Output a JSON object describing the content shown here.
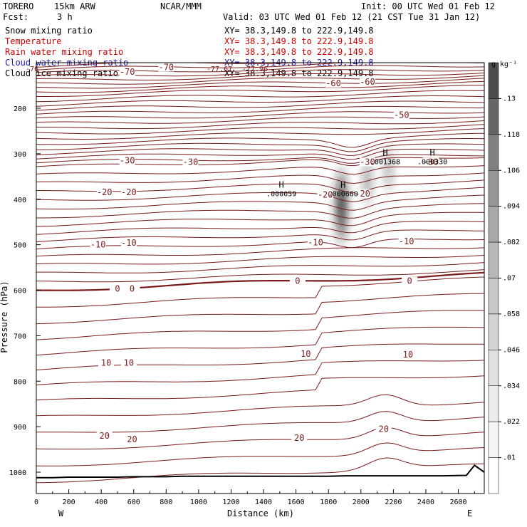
{
  "header": {
    "model": "TORERO",
    "resolution": "15km ARW",
    "center": "NCAR/MMM",
    "init": "Init: 00 UTC Wed 01 Feb 12",
    "fcst_label": "Fcst:",
    "fcst_value": "3 h",
    "valid": "Valid: 03 UTC Wed 01 Feb 12 (21 CST Tue 31 Jan 12)"
  },
  "fields": [
    {
      "name": "Snow mixing ratio",
      "xy": "XY=  38.3,149.8 to 222.9,149.8",
      "color": "#000000"
    },
    {
      "name": "Temperature",
      "xy": "XY=  38.3,149.8 to 222.9,149.8",
      "color": "#cc0000"
    },
    {
      "name": "Rain water mixing ratio",
      "xy": "XY=  38.3,149.8 to 222.9,149.8",
      "color": "#cc0000"
    },
    {
      "name": "Cloud water mixing ratio",
      "xy": "XY=  38.3,149.8 to 222.9,149.8",
      "color": "#1a1aaa"
    },
    {
      "name": "Cloud ice mixing ratio",
      "xy": "XY=  38.3,149.8 to 222.9,149.8",
      "color": "#000000"
    }
  ],
  "top_overlay_numbers": [
    "-77.67",
    "-77.96",
    "-76"
  ],
  "chart_data": {
    "type": "cross-section contour",
    "xlabel": "Distance (km)",
    "ylabel": "Pressure (hPa)",
    "xlim": [
      0,
      2760
    ],
    "ylim": [
      1050,
      100
    ],
    "x_ticks": [
      0,
      200,
      400,
      600,
      800,
      1000,
      1200,
      1400,
      1600,
      1800,
      2000,
      2200,
      2400,
      2600
    ],
    "y_ticks": [
      200,
      300,
      400,
      500,
      600,
      700,
      800,
      900,
      1000
    ],
    "west_label": "W",
    "east_label": "E",
    "isotherm_levels_degC": [
      -76,
      -74,
      -72,
      -70,
      -68,
      -66,
      -64,
      -62,
      -60,
      -58,
      -56,
      -54,
      -52,
      -50,
      -48,
      -46,
      -44,
      -42,
      -40,
      -38,
      -36,
      -34,
      -32,
      -30,
      -28,
      -26,
      -24,
      -22,
      -20,
      -18,
      -16,
      -14,
      -12,
      -10,
      -8,
      -6,
      -4,
      -2,
      0,
      2,
      4,
      6,
      8,
      10,
      12,
      14,
      16,
      18,
      20,
      22,
      24
    ],
    "contour_labels": [
      {
        "text": "-70",
        "x": 560,
        "p": 120
      },
      {
        "text": "-70",
        "x": 800,
        "p": 110
      },
      {
        "text": "-60",
        "x": 1830,
        "p": 145
      },
      {
        "text": "-60",
        "x": 2040,
        "p": 142
      },
      {
        "text": "-50",
        "x": 2250,
        "p": 215
      },
      {
        "text": "-30",
        "x": 560,
        "p": 315
      },
      {
        "text": "-30",
        "x": 950,
        "p": 318
      },
      {
        "text": "-30",
        "x": 2040,
        "p": 318
      },
      {
        "text": "-30",
        "x": 2430,
        "p": 318
      },
      {
        "text": "-20",
        "x": 420,
        "p": 385
      },
      {
        "text": "-20",
        "x": 570,
        "p": 385
      },
      {
        "text": "-20",
        "x": 1780,
        "p": 390
      },
      {
        "text": "-20",
        "x": 2010,
        "p": 388
      },
      {
        "text": "-10",
        "x": 380,
        "p": 500
      },
      {
        "text": "-10",
        "x": 570,
        "p": 496
      },
      {
        "text": "-10",
        "x": 1720,
        "p": 495
      },
      {
        "text": "-10",
        "x": 2280,
        "p": 493
      },
      {
        "text": "0",
        "x": 500,
        "p": 597
      },
      {
        "text": "0",
        "x": 590,
        "p": 597
      },
      {
        "text": "0",
        "x": 1610,
        "p": 580
      },
      {
        "text": "0",
        "x": 2300,
        "p": 580
      },
      {
        "text": "10",
        "x": 430,
        "p": 760
      },
      {
        "text": "10",
        "x": 570,
        "p": 760
      },
      {
        "text": "10",
        "x": 1660,
        "p": 740
      },
      {
        "text": "10",
        "x": 2290,
        "p": 742
      },
      {
        "text": "20",
        "x": 420,
        "p": 920
      },
      {
        "text": "20",
        "x": 590,
        "p": 928
      },
      {
        "text": "20",
        "x": 1620,
        "p": 925
      },
      {
        "text": "20",
        "x": 2140,
        "p": 905
      }
    ],
    "extrema": [
      {
        "letter": "H",
        "value": ".000059",
        "x": 1510,
        "p": 390
      },
      {
        "letter": "H",
        "value": ".000660",
        "x": 1890,
        "p": 390
      },
      {
        "letter": "H",
        "value": ".001368",
        "x": 2150,
        "p": 320
      },
      {
        "letter": "H",
        "value": ".000330",
        "x": 2440,
        "p": 320
      }
    ],
    "shading_blobs_snow_gkg": [
      {
        "x": 1880,
        "p": 415,
        "max": 0.14
      },
      {
        "x": 2040,
        "p": 360,
        "max": 0.05
      },
      {
        "x": 2170,
        "p": 335,
        "max": 0.04
      }
    ],
    "colorbar": {
      "unit": "g kg⁻¹",
      "ticks": [
        ".01",
        ".022",
        ".034",
        ".046",
        ".058",
        ".07",
        ".082",
        ".094",
        ".106",
        ".118",
        ".13"
      ],
      "colors": [
        "#ffffff",
        "#f5f5f5",
        "#ebebeb",
        "#e0e0e0",
        "#d4d4d4",
        "#c7c7c7",
        "#b8b8b8",
        "#a8a8a8",
        "#969696",
        "#808080",
        "#666666",
        "#4d4d4d"
      ]
    },
    "terrain_pressure": [
      1012,
      1012,
      1011,
      1011,
      1011,
      1011,
      1010,
      1010,
      1010,
      1009,
      1009,
      1009,
      1009,
      1009,
      1009,
      1009,
      1009,
      1009,
      1009,
      1008,
      1008,
      1008,
      1008,
      1008,
      1008,
      1008,
      1007,
      985,
      1000
    ],
    "terrain_x": [
      0,
      100,
      200,
      300,
      400,
      500,
      600,
      700,
      800,
      900,
      1000,
      1100,
      1200,
      1300,
      1400,
      1500,
      1600,
      1700,
      1800,
      1900,
      2000,
      2100,
      2200,
      2300,
      2400,
      2500,
      2650,
      2700,
      2760
    ]
  }
}
